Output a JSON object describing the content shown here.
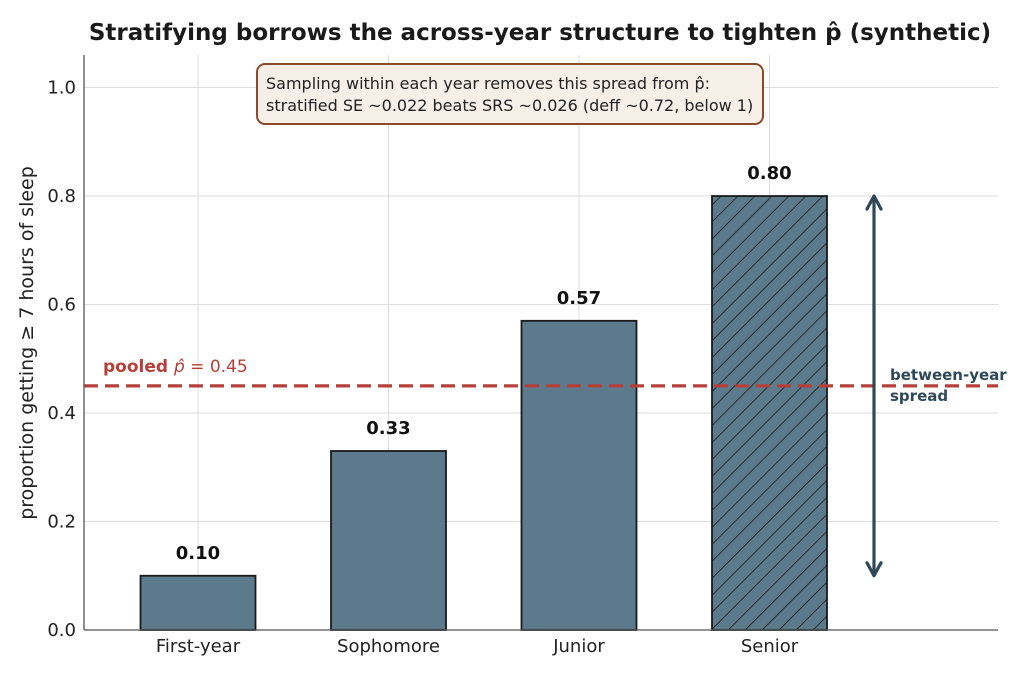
{
  "chart_data": {
    "type": "bar",
    "title": "Stratifying borrows the across-year structure to tighten p̂ (synthetic)",
    "ylabel": "proportion getting ≥ 7 hours of sleep",
    "xlabel": "",
    "categories": [
      "First-year",
      "Sophomore",
      "Junior",
      "Senior"
    ],
    "values": [
      0.1,
      0.33,
      0.57,
      0.8
    ],
    "value_labels": [
      "0.10",
      "0.33",
      "0.57",
      "0.80"
    ],
    "hatched_category": "Senior",
    "ylim": [
      0,
      1.06
    ],
    "yticks": [
      0.0,
      0.2,
      0.4,
      0.6,
      0.8,
      1.0
    ],
    "ytick_labels": [
      "0.0",
      "0.2",
      "0.4",
      "0.6",
      "0.8",
      "1.0"
    ],
    "grid": true,
    "pooled": {
      "value": 0.45,
      "label_prefix": "pooled ",
      "label_symbol": "p̂",
      "label_suffix": " = 0.45"
    },
    "annotation": {
      "line1": "Sampling within each year removes this spread from p̂:",
      "line2": "stratified SE ~0.022 beats SRS ~0.026  (deff ~0.72, below 1)"
    },
    "spread_arrow": {
      "from": 0.1,
      "to": 0.8,
      "label_line1": "between-year",
      "label_line2": "spread"
    },
    "colors": {
      "bar": "#5b7a8c",
      "bar_edge": "#1a1a1a",
      "pooled_line": "#b5403a",
      "arrow": "#2f4858",
      "grid": "#dddddd",
      "annotation_edge": "#8b4a2b",
      "annotation_bg": "#f6efe8"
    }
  }
}
